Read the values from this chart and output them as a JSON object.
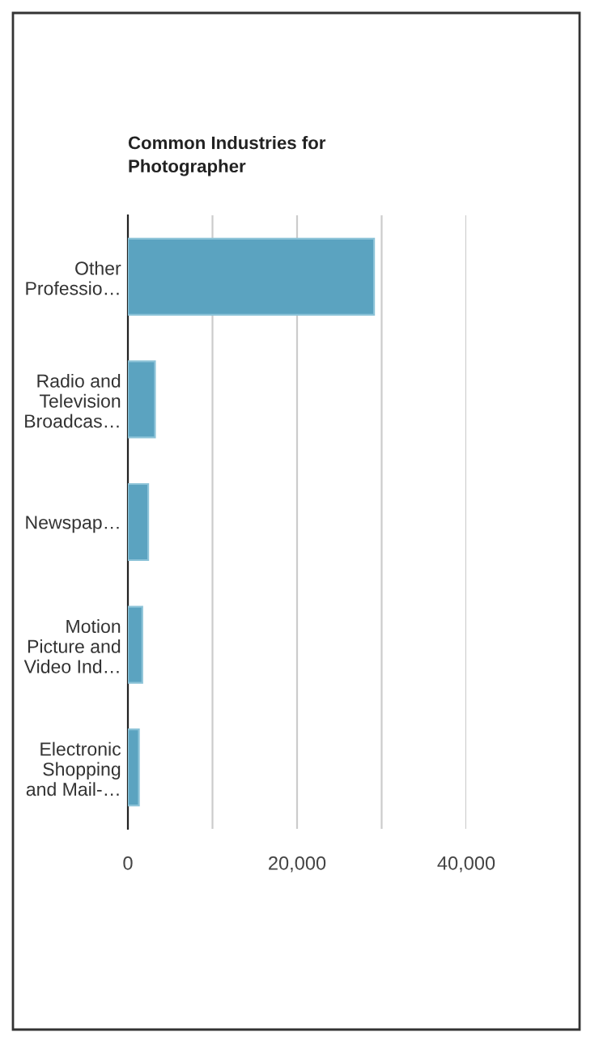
{
  "chart_data": {
    "type": "bar",
    "orientation": "horizontal",
    "title": "Common Industries for\nPhotographer",
    "categories": [
      "Other\nProfessio…",
      "Radio and\nTelevision\nBroadcas…",
      "Newspap…",
      "Motion\nPicture and\nVideo Ind…",
      "Electronic\nShopping\nand Mail-…"
    ],
    "values": [
      29100,
      3200,
      2400,
      1700,
      1300
    ],
    "color": "#5ba3c0",
    "xlim": [
      0,
      40000
    ],
    "xticks": [
      0,
      {
        "value": 10000,
        "label": null
      },
      {
        "value": 20000,
        "label": "20,000"
      },
      {
        "value": 30000,
        "label": null
      },
      {
        "value": 40000,
        "label": "40,000"
      }
    ],
    "grid": "x",
    "legend": false
  }
}
